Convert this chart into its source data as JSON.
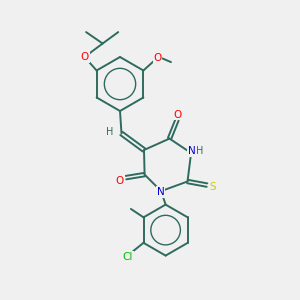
{
  "bg_color": "#f0f0f0",
  "bond_color": "#2e6b5e",
  "atom_colors": {
    "O": "#ff0000",
    "N": "#0000cc",
    "S": "#cccc00",
    "Cl": "#00bb00",
    "C": "#2e6b5e"
  },
  "figsize": [
    3.0,
    3.0
  ],
  "dpi": 100,
  "lw": 1.4
}
